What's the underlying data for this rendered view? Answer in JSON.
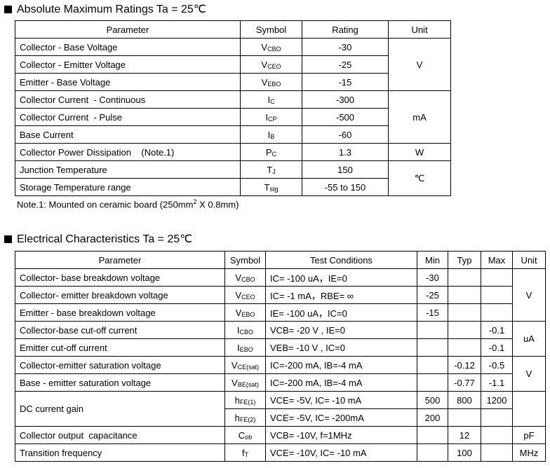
{
  "table1": {
    "heading": "Absolute Maximum Ratings Ta = 25℃",
    "columns": [
      "Parameter",
      "Symbol",
      "Rating",
      "Unit"
    ],
    "groups": [
      {
        "unit": "V",
        "rows": [
          {
            "parameter": "Collector - Base Voltage",
            "symbol": {
              "base": "V",
              "sub": "CBO"
            },
            "rating": "-30"
          },
          {
            "parameter": "Collector - Emitter Voltage",
            "symbol": {
              "base": "V",
              "sub": "CEO"
            },
            "rating": "-25"
          },
          {
            "parameter": "Emitter - Base Voltage",
            "symbol": {
              "base": "V",
              "sub": "EBO"
            },
            "rating": "-15"
          }
        ]
      },
      {
        "unit": "mA",
        "rows": [
          {
            "parameter": "Collector Current  - Continuous",
            "symbol": {
              "base": "I",
              "sub": "C"
            },
            "rating": "-300"
          },
          {
            "parameter": "Collector Current  - Pulse",
            "symbol": {
              "base": "I",
              "sub": "CP"
            },
            "rating": "-500"
          },
          {
            "parameter": "Base Current",
            "symbol": {
              "base": "I",
              "sub": "B"
            },
            "rating": "-60"
          }
        ]
      },
      {
        "unit": "W",
        "rows": [
          {
            "parameter": "Collector Power Dissipation    (Note.1)",
            "symbol": {
              "base": "P",
              "sub": "C"
            },
            "rating": "1.3"
          }
        ]
      },
      {
        "unit": "℃",
        "rows": [
          {
            "parameter": "Junction Temperature",
            "symbol": {
              "base": "T",
              "sub": "J"
            },
            "rating": "150"
          },
          {
            "parameter": "Storage Temperature range",
            "symbol": {
              "base": "T",
              "sub": "stg"
            },
            "rating": "-55 to 150"
          }
        ]
      }
    ],
    "note": {
      "text": "Note.1: Mounted on ceramic board (250mm",
      "sup": "2",
      "rest": "  X  0.8mm)"
    }
  },
  "table2": {
    "heading": "Electrical Characteristics Ta = 25℃",
    "columns": [
      "Parameter",
      "Symbol",
      "Test Conditions",
      "Min",
      "Typ",
      "Max",
      "Unit"
    ],
    "groups": [
      {
        "unit": "V",
        "rows": [
          {
            "parameter": "Collector- base breakdown voltage",
            "lines": [
              {
                "symbol": {
                  "base": "V",
                  "sub": "CBO"
                },
                "conditions": "IC= -100 uA，IE=0",
                "min": "-30"
              }
            ]
          },
          {
            "parameter": "Collector- emitter breakdown voltage",
            "lines": [
              {
                "symbol": {
                  "base": "V",
                  "sub": "CEO"
                },
                "conditions": "IC= -1 mA，RBE= ∞",
                "min": "-25"
              }
            ]
          },
          {
            "parameter": "Emitter - base breakdown voltage",
            "lines": [
              {
                "symbol": {
                  "base": "V",
                  "sub": "EBO"
                },
                "conditions": "IE= -100 uA，IC=0",
                "min": "-15"
              }
            ]
          }
        ]
      },
      {
        "unit": "uA",
        "rows": [
          {
            "parameter": "Collector-base cut-off current",
            "lines": [
              {
                "symbol": {
                  "base": "I",
                  "sub": "CBO"
                },
                "conditions": "VCB= -20 V , IE=0",
                "max": "-0.1"
              }
            ]
          },
          {
            "parameter": "Emitter cut-off current",
            "lines": [
              {
                "symbol": {
                  "base": "I",
                  "sub": "EBO"
                },
                "conditions": "VEB= -10 V , IC=0",
                "max": "-0.1"
              }
            ]
          }
        ]
      },
      {
        "unit": "V",
        "rows": [
          {
            "parameter": "Collector-emitter saturation voltage",
            "lines": [
              {
                "symbol": {
                  "base": "V",
                  "sub": "CE(sat)"
                },
                "conditions": "IC=-200 mA, IB=-4 mA",
                "typ": "-0.12",
                "max": "-0.5"
              }
            ]
          },
          {
            "parameter": "Base - emitter saturation voltage",
            "lines": [
              {
                "symbol": {
                  "base": "V",
                  "sub": "BE(sat)"
                },
                "conditions": "IC=-200 mA, IB=-4 mA",
                "typ": "-0.77",
                "max": "-1.1"
              }
            ]
          }
        ]
      },
      {
        "rows": [
          {
            "parameter": "DC current gain",
            "lines": [
              {
                "symbol": {
                  "base": "h",
                  "sub": "FE(1)"
                },
                "conditions": "VCE= -5V, IC= -10 mA",
                "min": "500",
                "typ": "800",
                "max": "1200"
              },
              {
                "symbol": {
                  "base": "h",
                  "sub": "FE(2)"
                },
                "conditions": "VCE= -5V, IC= -200mA",
                "min": "200"
              }
            ]
          }
        ]
      },
      {
        "unit": "pF",
        "rows": [
          {
            "parameter": "Collector output  capacitance",
            "lines": [
              {
                "symbol": {
                  "base": "C",
                  "sub": "ob"
                },
                "conditions": "VCB= -10V, f=1MHz",
                "typ": "12"
              }
            ]
          }
        ]
      },
      {
        "unit": "MHz",
        "rows": [
          {
            "parameter": "Transition frequency",
            "lines": [
              {
                "symbol": {
                  "base": "f",
                  "sub": "T"
                },
                "conditions": "VCE= -10V, IC= -10 mA",
                "typ": "100"
              }
            ]
          }
        ]
      }
    ]
  }
}
